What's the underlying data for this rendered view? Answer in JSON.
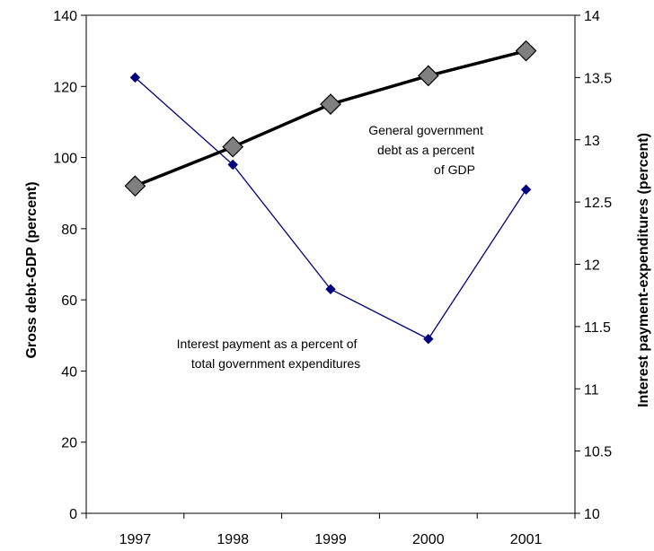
{
  "chart_data": {
    "type": "line",
    "categories": [
      "1997",
      "1998",
      "1999",
      "2000",
      "2001"
    ],
    "ylabel": "Gross debt-GDP (percent)",
    "ylabel_right": "Interest payment-expenditures (percent)",
    "ylim": [
      0,
      140
    ],
    "yticks": [
      "0",
      "20",
      "40",
      "60",
      "80",
      "100",
      "120",
      "140"
    ],
    "ylim_right": [
      10,
      14
    ],
    "yticks_right": [
      "10",
      "10.5",
      "11",
      "11.5",
      "12",
      "12.5",
      "13",
      "13.5",
      "14"
    ],
    "grid": false,
    "series": [
      {
        "axis": "left",
        "values": [
          92,
          103,
          115,
          123,
          130
        ],
        "color": "#000000",
        "marker": "diamond",
        "marker_color": "#808080"
      },
      {
        "axis": "right",
        "values": [
          13.5,
          12.8,
          11.8,
          11.4,
          12.6
        ],
        "color": "#000080",
        "marker": "diamond",
        "marker_color": "#000080"
      }
    ],
    "annotations": [
      {
        "lines": [
          "General government",
          "debt as a percent",
          "of GDP"
        ]
      },
      {
        "lines": [
          "Interest payment as a percent of",
          "total government expenditures"
        ]
      }
    ]
  }
}
